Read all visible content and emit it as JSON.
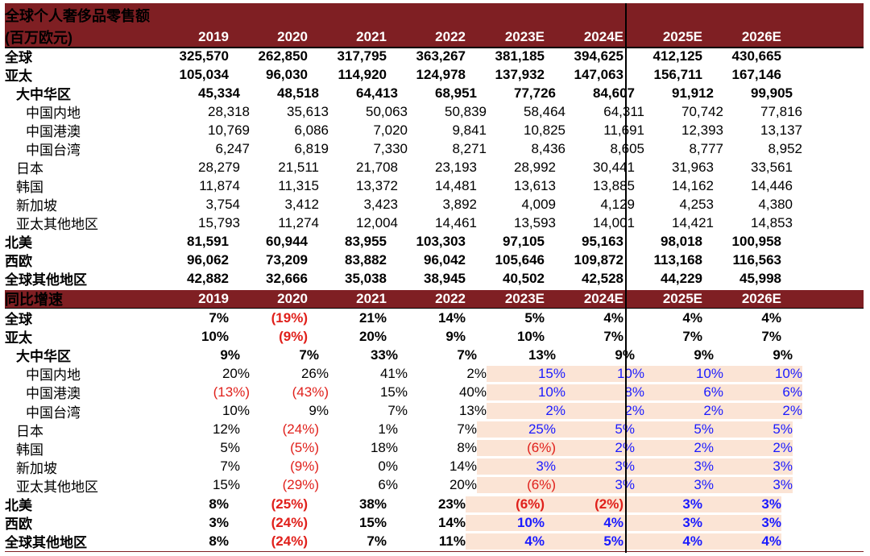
{
  "title": "全球个人奢侈品零售额",
  "unit": "(百万欧元)",
  "years": [
    "2019",
    "2020",
    "2021",
    "2022",
    "2023E",
    "2024E",
    "2025E",
    "2026E"
  ],
  "growth_title": "同比增速",
  "chart_data": {
    "type": "table",
    "title": "全球个人奢侈品零售额",
    "unit": "(百万欧元)",
    "columns": [
      "2019",
      "2020",
      "2021",
      "2022",
      "2023E",
      "2024E",
      "2025E",
      "2026E"
    ],
    "sales": [
      {
        "label": "全球",
        "level": 0,
        "values": [
          "325,570",
          "262,850",
          "317,795",
          "363,267",
          "381,185",
          "394,625",
          "412,125",
          "430,665"
        ]
      },
      {
        "label": "亚太",
        "level": 0,
        "values": [
          "105,034",
          "96,030",
          "114,920",
          "124,978",
          "137,932",
          "147,063",
          "156,711",
          "167,146"
        ]
      },
      {
        "label": "大中华区",
        "level": 1,
        "values": [
          "45,334",
          "48,518",
          "64,413",
          "68,951",
          "77,726",
          "84,607",
          "91,912",
          "99,905"
        ]
      },
      {
        "label": "中国内地",
        "level": 2,
        "values": [
          "28,318",
          "35,613",
          "50,063",
          "50,839",
          "58,464",
          "64,311",
          "70,742",
          "77,816"
        ]
      },
      {
        "label": "中国港澳",
        "level": 2,
        "values": [
          "10,769",
          "6,086",
          "7,020",
          "9,841",
          "10,825",
          "11,691",
          "12,393",
          "13,137"
        ]
      },
      {
        "label": "中国台湾",
        "level": 2,
        "values": [
          "6,247",
          "6,819",
          "7,330",
          "8,271",
          "8,436",
          "8,605",
          "8,777",
          "8,952"
        ]
      },
      {
        "label": "日本",
        "level": 1,
        "values": [
          "28,279",
          "21,511",
          "21,708",
          "23,193",
          "28,992",
          "30,441",
          "31,963",
          "33,561"
        ]
      },
      {
        "label": "韩国",
        "level": 1,
        "values": [
          "11,874",
          "11,315",
          "13,372",
          "14,481",
          "13,613",
          "13,885",
          "14,162",
          "14,446"
        ]
      },
      {
        "label": "新加坡",
        "level": 1,
        "values": [
          "3,754",
          "3,412",
          "3,423",
          "3,892",
          "4,009",
          "4,129",
          "4,253",
          "4,380"
        ]
      },
      {
        "label": "亚太其他地区",
        "level": 1,
        "values": [
          "15,793",
          "11,274",
          "12,004",
          "14,461",
          "13,593",
          "14,001",
          "14,421",
          "14,853"
        ]
      },
      {
        "label": "北美",
        "level": 0,
        "values": [
          "81,591",
          "60,944",
          "83,955",
          "103,303",
          "97,105",
          "95,163",
          "98,018",
          "100,958"
        ]
      },
      {
        "label": "西欧",
        "level": 0,
        "values": [
          "96,062",
          "73,209",
          "83,882",
          "96,042",
          "105,646",
          "109,872",
          "113,168",
          "116,563"
        ]
      },
      {
        "label": "全球其他地区",
        "level": 0,
        "values": [
          "42,882",
          "32,666",
          "35,038",
          "38,945",
          "40,502",
          "42,528",
          "44,229",
          "45,998"
        ]
      }
    ],
    "growth": [
      {
        "label": "全球",
        "level": 0,
        "values": [
          "7%",
          "(19%)",
          "21%",
          "14%",
          "5%",
          "4%",
          "4%",
          "4%"
        ]
      },
      {
        "label": "亚太",
        "level": 0,
        "values": [
          "10%",
          "(9%)",
          "20%",
          "9%",
          "10%",
          "7%",
          "7%",
          "7%"
        ]
      },
      {
        "label": "大中华区",
        "level": 1,
        "values": [
          "9%",
          "7%",
          "33%",
          "7%",
          "13%",
          "9%",
          "9%",
          "9%"
        ]
      },
      {
        "label": "中国内地",
        "level": 2,
        "values": [
          "20%",
          "26%",
          "41%",
          "2%",
          "15%",
          "10%",
          "10%",
          "10%"
        ]
      },
      {
        "label": "中国港澳",
        "level": 2,
        "values": [
          "(13%)",
          "(43%)",
          "15%",
          "40%",
          "10%",
          "8%",
          "6%",
          "6%"
        ]
      },
      {
        "label": "中国台湾",
        "level": 2,
        "values": [
          "10%",
          "9%",
          "7%",
          "13%",
          "2%",
          "2%",
          "2%",
          "2%"
        ]
      },
      {
        "label": "日本",
        "level": 1,
        "values": [
          "12%",
          "(24%)",
          "1%",
          "7%",
          "25%",
          "5%",
          "5%",
          "5%"
        ]
      },
      {
        "label": "韩国",
        "level": 1,
        "values": [
          "5%",
          "(5%)",
          "18%",
          "8%",
          "(6%)",
          "2%",
          "2%",
          "2%"
        ]
      },
      {
        "label": "新加坡",
        "level": 1,
        "values": [
          "7%",
          "(9%)",
          "0%",
          "14%",
          "3%",
          "3%",
          "3%",
          "3%"
        ]
      },
      {
        "label": "亚太其他地区",
        "level": 1,
        "values": [
          "15%",
          "(29%)",
          "6%",
          "20%",
          "(6%)",
          "3%",
          "3%",
          "3%"
        ]
      },
      {
        "label": "北美",
        "level": 0,
        "values": [
          "8%",
          "(25%)",
          "38%",
          "23%",
          "(6%)",
          "(2%)",
          "3%",
          "3%"
        ]
      },
      {
        "label": "西欧",
        "level": 0,
        "values": [
          "3%",
          "(24%)",
          "15%",
          "14%",
          "10%",
          "4%",
          "3%",
          "3%"
        ]
      },
      {
        "label": "全球其他地区",
        "level": 0,
        "values": [
          "8%",
          "(24%)",
          "7%",
          "11%",
          "4%",
          "5%",
          "4%",
          "4%"
        ]
      }
    ]
  },
  "colors": {
    "header_bg": "#7f1f23",
    "negative": "#e0201b",
    "forecast": "#1a1aff",
    "shade": "#fbe4d5"
  }
}
